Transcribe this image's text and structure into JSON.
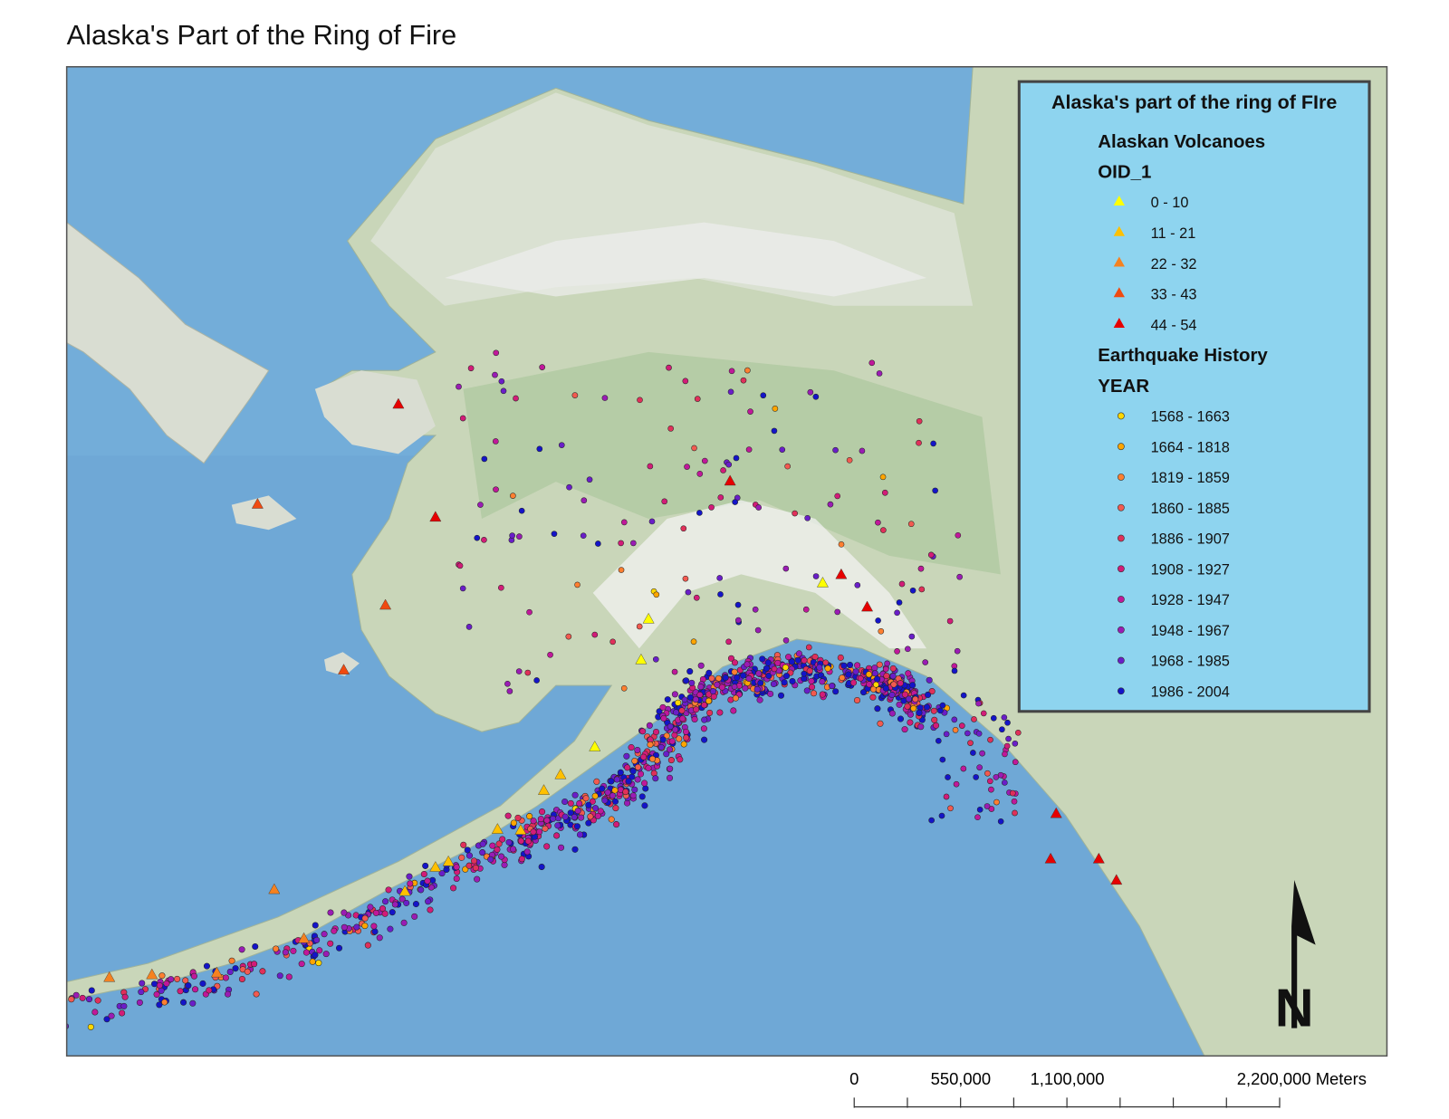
{
  "header": {
    "title": "Alaska's Part of the Ring of Fire"
  },
  "legend": {
    "title": "Alaska's part of the ring of FIre",
    "groups": [
      {
        "layer": "Alaskan Volcanoes",
        "field": "OID_1",
        "symbol": "triangle",
        "classes": [
          {
            "label": "0 - 10",
            "color": "#ffff00"
          },
          {
            "label": "11 - 21",
            "color": "#ffc000"
          },
          {
            "label": "22 - 32",
            "color": "#f58220"
          },
          {
            "label": "33 - 43",
            "color": "#f04a10"
          },
          {
            "label": "44 - 54",
            "color": "#e60000"
          }
        ]
      },
      {
        "layer": "Earthquake History",
        "field": "YEAR",
        "symbol": "circle",
        "classes": [
          {
            "label": "1568 - 1663",
            "color": "#ffd700"
          },
          {
            "label": "1664 - 1818",
            "color": "#ffa500"
          },
          {
            "label": "1819 - 1859",
            "color": "#ff7f30"
          },
          {
            "label": "1860 - 1885",
            "color": "#f25a50"
          },
          {
            "label": "1886 - 1907",
            "color": "#e0305a"
          },
          {
            "label": "1908 - 1927",
            "color": "#d21c78"
          },
          {
            "label": "1928 - 1947",
            "color": "#c0189a"
          },
          {
            "label": "1948 - 1967",
            "color": "#9a1cb4"
          },
          {
            "label": "1968 - 1985",
            "color": "#6a1ec8"
          },
          {
            "label": "1986 - 2004",
            "color": "#1414c8"
          }
        ]
      }
    ]
  },
  "scale_bar": {
    "labels": [
      "0",
      "550,000",
      "1,100,000",
      "2,200,000 Meters"
    ]
  },
  "north_arrow": {
    "label": "N"
  }
}
